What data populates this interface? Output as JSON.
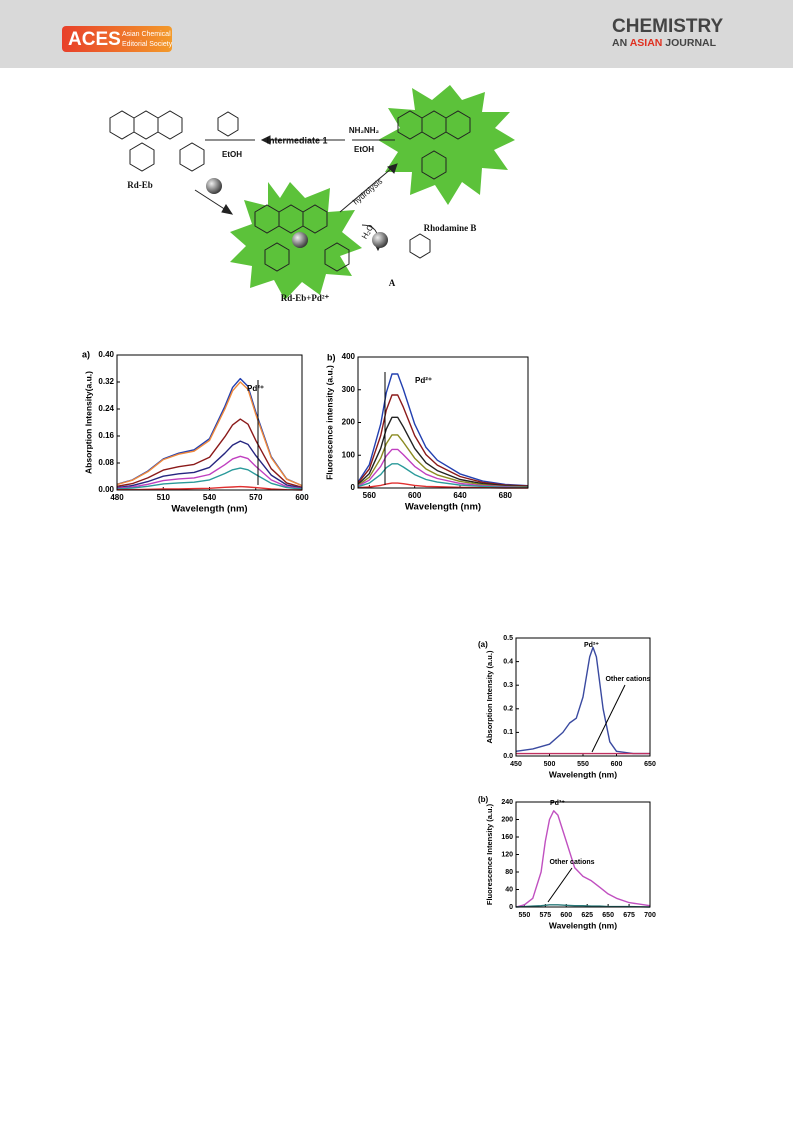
{
  "header": {
    "logo": "ACES",
    "logo_sub_1": "Asian Chemical",
    "logo_sub_2": "Editorial Society",
    "journal_top": "CHEMISTRY",
    "journal_an": "AN",
    "journal_asian": "ASIAN",
    "journal_journal": "JOURNAL"
  },
  "scheme": {
    "intermediate": "Intermediate 1",
    "reagent": "NH₂NH₂",
    "solvent_right": "EtOH",
    "solvent_left": "EtOH",
    "probe": "Rd-Eb",
    "product": "Rhodamine B",
    "complex": "Rd-Eb+Pd²⁺",
    "hydrolysis": "hydrolysis",
    "water": "H₂O",
    "byproduct": "A"
  },
  "chart_data": [
    {
      "type": "line",
      "panel": "a)",
      "ylabel": "Absorption Intensity(a.u.)",
      "xlabel": "Wavelength (nm)",
      "annotations": [
        "Pd²⁺"
      ],
      "x": [
        480,
        490,
        500,
        510,
        520,
        530,
        540,
        550,
        555,
        560,
        565,
        570,
        580,
        590,
        600
      ],
      "xlim": [
        480,
        600
      ],
      "xticks": [
        480,
        510,
        540,
        570,
        600
      ],
      "ylim": [
        0,
        0.4
      ],
      "yticks": [
        {
          "value": 0,
          "label": "0.00"
        },
        {
          "value": 0.08,
          "label": "0.08"
        },
        {
          "value": 0.16,
          "label": "0.16"
        },
        {
          "value": 0.24,
          "label": "0.24"
        },
        {
          "value": 0.32,
          "label": "0.32"
        },
        {
          "value": 0.4,
          "label": "0.40"
        }
      ],
      "series": [
        {
          "color": "#2340b0",
          "values": [
            0.017,
            0.03,
            0.056,
            0.092,
            0.109,
            0.119,
            0.152,
            0.248,
            0.304,
            0.33,
            0.307,
            0.231,
            0.099,
            0.033,
            0.013
          ]
        },
        {
          "color": "#f08a3c",
          "values": [
            0.016,
            0.029,
            0.054,
            0.09,
            0.106,
            0.115,
            0.147,
            0.24,
            0.294,
            0.32,
            0.298,
            0.224,
            0.096,
            0.032,
            0.013
          ]
        },
        {
          "color": "#8b1a1a",
          "values": [
            0.011,
            0.019,
            0.036,
            0.059,
            0.069,
            0.076,
            0.097,
            0.158,
            0.193,
            0.21,
            0.195,
            0.147,
            0.063,
            0.021,
            0.008
          ]
        },
        {
          "color": "#262680",
          "values": [
            0.007,
            0.013,
            0.025,
            0.041,
            0.048,
            0.052,
            0.067,
            0.109,
            0.133,
            0.145,
            0.135,
            0.102,
            0.044,
            0.015,
            0.006
          ]
        },
        {
          "color": "#c040c0",
          "values": [
            0.005,
            0.009,
            0.017,
            0.028,
            0.033,
            0.036,
            0.046,
            0.075,
            0.092,
            0.1,
            0.093,
            0.07,
            0.03,
            0.01,
            0.004
          ]
        },
        {
          "color": "#2a9a9a",
          "values": [
            0.003,
            0.006,
            0.011,
            0.018,
            0.021,
            0.023,
            0.03,
            0.049,
            0.06,
            0.065,
            0.06,
            0.046,
            0.02,
            0.007,
            0.003
          ]
        },
        {
          "color": "#e03030",
          "values": [
            0.001,
            0.001,
            0.002,
            0.003,
            0.003,
            0.004,
            0.005,
            0.008,
            0.009,
            0.01,
            0.009,
            0.007,
            0.003,
            0.001,
            0
          ]
        }
      ]
    },
    {
      "type": "line",
      "panel": "b)",
      "ylabel": "Fluorescence intensity (a.u.)",
      "xlabel": "Wavelength (nm)",
      "annotations": [
        "Pd²⁺"
      ],
      "x": [
        550,
        560,
        570,
        575,
        580,
        585,
        590,
        600,
        610,
        620,
        640,
        660,
        680,
        700
      ],
      "xlim": [
        550,
        700
      ],
      "xticks": [
        560,
        600,
        640,
        680
      ],
      "ylim": [
        0,
        400
      ],
      "yticks": [
        0,
        100,
        200,
        300,
        400
      ],
      "series": [
        {
          "color": "#2340b0",
          "values": [
            18,
            71,
            195,
            291,
            348,
            348,
            302,
            195,
            124,
            85,
            43,
            21,
            11,
            7
          ]
        },
        {
          "color": "#8b1a1a",
          "values": [
            15,
            58,
            160,
            238,
            284,
            284,
            247,
            160,
            102,
            70,
            35,
            17,
            9,
            6
          ]
        },
        {
          "color": "#222222",
          "values": [
            11,
            44,
            121,
            180,
            216,
            216,
            187,
            121,
            77,
            53,
            26,
            13,
            7,
            4
          ]
        },
        {
          "color": "#8a8a20",
          "values": [
            8,
            33,
            91,
            135,
            162,
            162,
            140,
            91,
            58,
            40,
            20,
            10,
            5,
            3
          ]
        },
        {
          "color": "#c040c0",
          "values": [
            6,
            24,
            66,
            98,
            118,
            118,
            102,
            66,
            42,
            29,
            14,
            7,
            4,
            2
          ]
        },
        {
          "color": "#2a9a9a",
          "values": [
            4,
            15,
            41,
            62,
            74,
            74,
            64,
            41,
            26,
            18,
            9,
            5,
            2,
            2
          ]
        },
        {
          "color": "#e03030",
          "values": [
            1,
            3,
            8,
            12,
            15,
            15,
            13,
            8,
            5,
            4,
            2,
            1,
            0,
            0
          ]
        }
      ]
    },
    {
      "type": "line",
      "panel": "(a)",
      "ylabel": "Absorption Intensity (a.u.)",
      "xlabel": "Wavelength (nm)",
      "annotations": [
        "Pd²⁺",
        "Other cations"
      ],
      "x": [
        450,
        475,
        500,
        520,
        530,
        540,
        550,
        560,
        565,
        570,
        580,
        590,
        600,
        625,
        650
      ],
      "xlim": [
        450,
        650
      ],
      "xticks": [
        450,
        500,
        550,
        600,
        650
      ],
      "ylim": [
        0,
        0.5
      ],
      "yticks": [
        {
          "value": 0,
          "label": "0.0"
        },
        0.1,
        0.2,
        0.3,
        0.4,
        0.5
      ],
      "series": [
        {
          "color": "#3a4aa0",
          "values": [
            0.02,
            0.03,
            0.05,
            0.1,
            0.14,
            0.16,
            0.25,
            0.42,
            0.46,
            0.42,
            0.2,
            0.06,
            0.02,
            0.01,
            0.01
          ]
        },
        {
          "color": "#c03060",
          "values": [
            0.01,
            0.01,
            0.01,
            0.01,
            0.01,
            0.01,
            0.01,
            0.01,
            0.01,
            0.01,
            0.01,
            0.01,
            0.01,
            0.01,
            0.01
          ]
        }
      ]
    },
    {
      "type": "line",
      "panel": "(b)",
      "ylabel": "Fluorescence Intensity (a.u.)",
      "xlabel": "Wavelength (nm)",
      "annotations": [
        "Pd²⁺",
        "Other cations"
      ],
      "x": [
        540,
        550,
        560,
        570,
        575,
        580,
        585,
        590,
        600,
        610,
        620,
        630,
        640,
        650,
        660,
        675,
        700
      ],
      "xlim": [
        540,
        700
      ],
      "xticks": [
        550,
        575,
        600,
        625,
        650,
        675,
        700
      ],
      "ylim": [
        0,
        240
      ],
      "yticks": [
        0,
        40,
        80,
        120,
        160,
        200,
        240
      ],
      "series": [
        {
          "color": "#c050c0",
          "values": [
            0,
            5,
            20,
            80,
            150,
            200,
            220,
            210,
            150,
            90,
            70,
            60,
            45,
            30,
            20,
            10,
            3
          ]
        },
        {
          "color": "#2a7a7a",
          "values": [
            0,
            1,
            2,
            3,
            4,
            5,
            5,
            5,
            4,
            3,
            3,
            2,
            2,
            1,
            1,
            1,
            0
          ]
        }
      ]
    }
  ]
}
